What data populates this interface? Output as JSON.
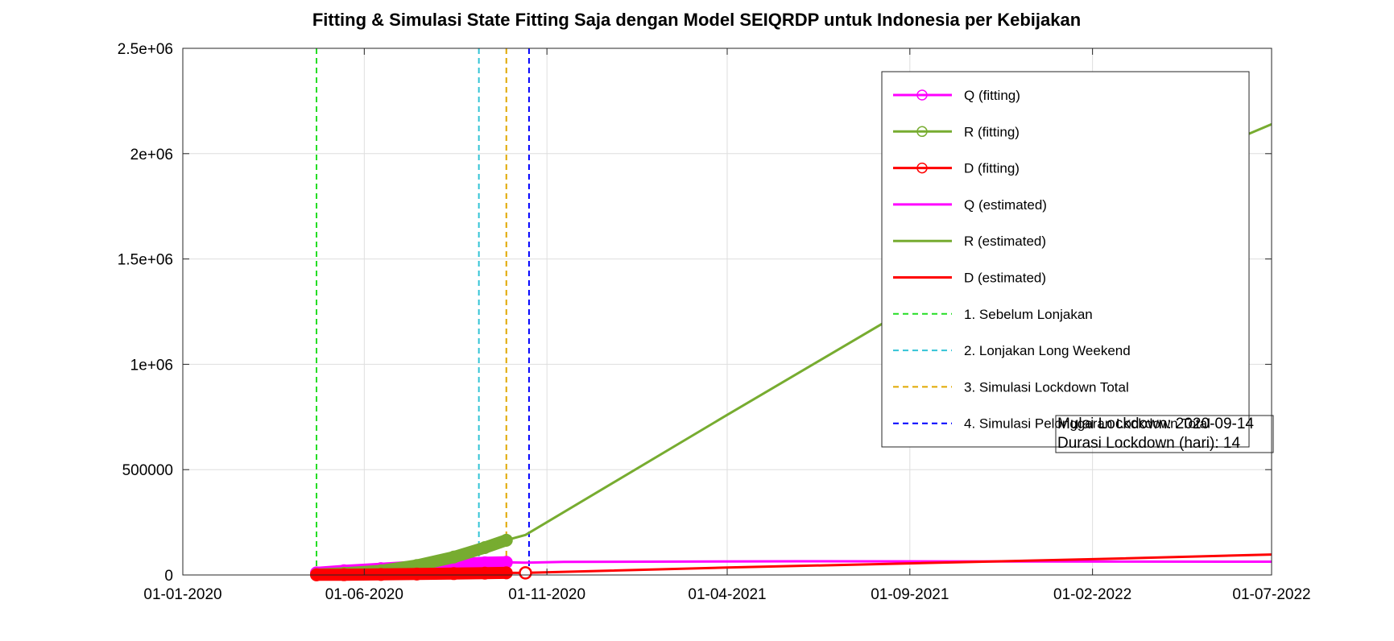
{
  "chart_data": {
    "type": "line",
    "title": "Fitting & Simulasi State Fitting Saja dengan Model SEIQRDP untuk Indonesia per Kebijakan",
    "xlabel": "",
    "ylabel": "",
    "xlim": [
      "2020-01-01",
      "2022-07-01"
    ],
    "ylim": [
      0,
      2500000
    ],
    "grid": true,
    "legend_position": "top-right",
    "x_ticks": [
      "2020-01-01",
      "2020-06-01",
      "2020-11-01",
      "2021-04-01",
      "2021-09-01",
      "2022-02-01",
      "2022-07-01"
    ],
    "x_tick_labels": [
      "01-01-2020",
      "01-06-2020",
      "01-11-2020",
      "01-04-2021",
      "01-09-2021",
      "01-02-2022",
      "01-07-2022"
    ],
    "y_ticks": [
      0,
      500000,
      1000000,
      1500000,
      2000000,
      2500000
    ],
    "y_tick_labels": [
      "0",
      "500000",
      "1e+06",
      "1.5e+06",
      "2e+06",
      "2.5e+06"
    ],
    "series": [
      {
        "name": "Q (fitting)",
        "color": "#ff00ff",
        "style": "marker-line",
        "points": [
          [
            "2020-04-22",
            10000
          ],
          [
            "2020-05-15",
            20000
          ],
          [
            "2020-06-15",
            30000
          ],
          [
            "2020-07-15",
            40000
          ],
          [
            "2020-08-15",
            50000
          ],
          [
            "2020-09-10",
            58000
          ],
          [
            "2020-09-28",
            60000
          ]
        ]
      },
      {
        "name": "R (fitting)",
        "color": "#77ac30",
        "style": "marker-line",
        "points": [
          [
            "2020-04-22",
            2000
          ],
          [
            "2020-05-15",
            8000
          ],
          [
            "2020-06-15",
            20000
          ],
          [
            "2020-07-15",
            45000
          ],
          [
            "2020-08-15",
            85000
          ],
          [
            "2020-09-10",
            130000
          ],
          [
            "2020-09-28",
            165000
          ]
        ]
      },
      {
        "name": "D (fitting)",
        "color": "#ff0000",
        "style": "marker-line",
        "points": [
          [
            "2020-04-22",
            700
          ],
          [
            "2020-05-15",
            1200
          ],
          [
            "2020-06-15",
            2500
          ],
          [
            "2020-07-15",
            4500
          ],
          [
            "2020-08-15",
            6500
          ],
          [
            "2020-09-10",
            8500
          ],
          [
            "2020-09-28",
            10000
          ]
        ]
      },
      {
        "name": "Q (estimated)",
        "color": "#ff00ff",
        "style": "line",
        "points": [
          [
            "2020-04-22",
            10000
          ],
          [
            "2020-06-15",
            30000
          ],
          [
            "2020-08-15",
            50000
          ],
          [
            "2020-09-28",
            60000
          ],
          [
            "2020-10-14",
            58000
          ],
          [
            "2020-11-15",
            62000
          ],
          [
            "2021-06-01",
            65000
          ],
          [
            "2022-07-01",
            63000
          ]
        ]
      },
      {
        "name": "R (estimated)",
        "color": "#77ac30",
        "style": "line",
        "points": [
          [
            "2020-04-22",
            2000
          ],
          [
            "2020-06-15",
            20000
          ],
          [
            "2020-08-15",
            85000
          ],
          [
            "2020-09-28",
            165000
          ],
          [
            "2020-10-14",
            190000
          ],
          [
            "2021-04-01",
            760000
          ],
          [
            "2021-09-01",
            1270000
          ],
          [
            "2022-02-01",
            1780000
          ],
          [
            "2022-07-01",
            2140000
          ]
        ]
      },
      {
        "name": "D (estimated)",
        "color": "#ff0000",
        "style": "line",
        "points": [
          [
            "2020-04-22",
            700
          ],
          [
            "2020-09-28",
            10000
          ],
          [
            "2020-10-14",
            10000
          ],
          [
            "2021-04-01",
            35000
          ],
          [
            "2021-09-01",
            55000
          ],
          [
            "2022-02-01",
            75000
          ],
          [
            "2022-07-01",
            97000
          ]
        ]
      }
    ],
    "vertical_lines": [
      {
        "name": "1. Sebelum Lonjakan",
        "x": "2020-04-22",
        "color": "#22dd22"
      },
      {
        "name": "2. Lonjakan Long Weekend",
        "x": "2020-09-05",
        "color": "#33c4d6"
      },
      {
        "name": "3. Simulasi Lockdown Total",
        "x": "2020-09-28",
        "color": "#e0a800"
      },
      {
        "name": "4. Simulasi Pelonggaran Lockdown Total",
        "x": "2020-10-17",
        "color": "#0000ff"
      }
    ],
    "annotations": [
      "Mulai Lockdown: 2020-09-14",
      "Durasi Lockdown (hari): 14"
    ]
  }
}
